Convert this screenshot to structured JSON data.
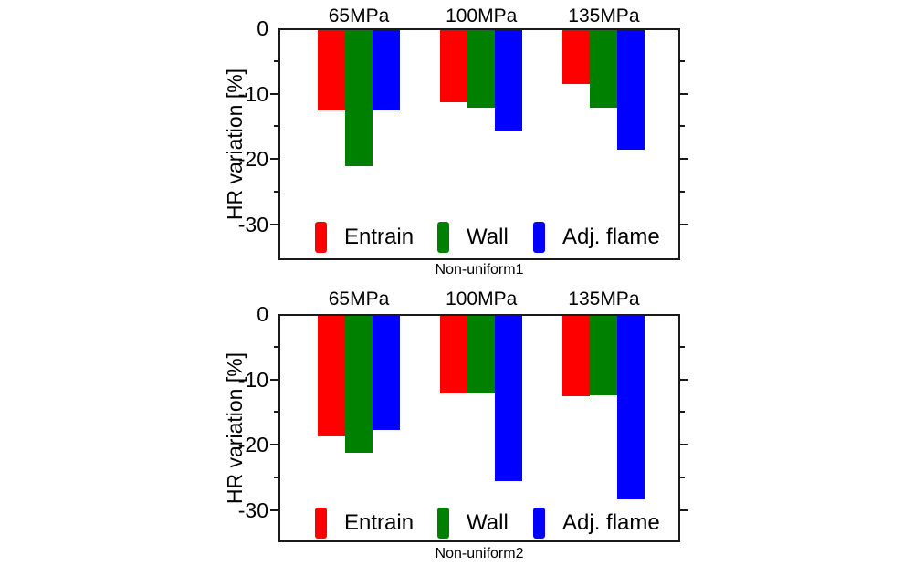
{
  "figure": {
    "background": "#ffffff",
    "frame_color": "#1a1a1a"
  },
  "chart_data": [
    {
      "type": "bar",
      "panel_label": "Non-uniform1",
      "ylabel": "HR variation [%]",
      "xlabel": "",
      "categories": [
        "65MPa",
        "100MPa",
        "135MPa"
      ],
      "series": [
        {
          "name": "Entrain",
          "color": "#ff0000",
          "values": [
            -12.6,
            -11.3,
            -8.5
          ]
        },
        {
          "name": "Wall",
          "color": "#008000",
          "values": [
            -21.1,
            -12.1,
            -12.2
          ]
        },
        {
          "name": "Adj. flame",
          "color": "#0000ff",
          "values": [
            -12.6,
            -15.7,
            -18.6
          ]
        }
      ],
      "yticks": [
        0,
        -10,
        -20,
        -30
      ],
      "minor_yticks": [
        -5,
        -15,
        -25
      ],
      "ylim": [
        0,
        -35.5
      ],
      "grid": false,
      "legend_position": "bottom-inside"
    },
    {
      "type": "bar",
      "panel_label": "Non-uniform2",
      "ylabel": "HR variation [%]",
      "xlabel": "",
      "categories": [
        "65MPa",
        "100MPa",
        "135MPa"
      ],
      "series": [
        {
          "name": "Entrain",
          "color": "#ff0000",
          "values": [
            -18.7,
            -12.1,
            -12.6
          ]
        },
        {
          "name": "Wall",
          "color": "#008000",
          "values": [
            -21.3,
            -12.2,
            -12.4
          ]
        },
        {
          "name": "Adj. flame",
          "color": "#0000ff",
          "values": [
            -17.8,
            -25.6,
            -28.4
          ]
        }
      ],
      "yticks": [
        0,
        -10,
        -20,
        -30
      ],
      "minor_yticks": [
        -5,
        -15,
        -25
      ],
      "ylim": [
        0,
        -35.0
      ],
      "grid": false,
      "legend_position": "bottom-inside"
    }
  ]
}
